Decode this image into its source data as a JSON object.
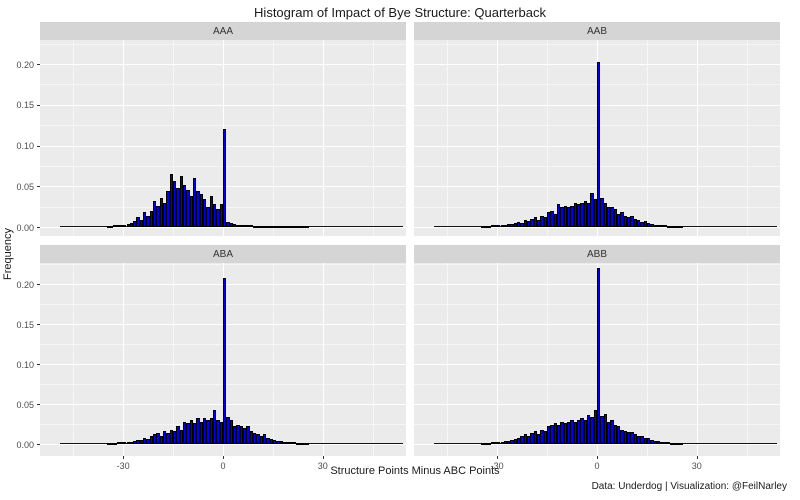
{
  "title": "Histogram of Impact of Bye Structure: Quarterback",
  "caption": "Data: Underdog | Visualization: @FeilNarley",
  "axes": {
    "x_label": "Structure Points Minus ABC Points",
    "y_label": "Frequency",
    "x_ticks": [
      -30,
      0,
      30
    ],
    "x_tick_labels": [
      "-30",
      "0",
      "30"
    ],
    "y_ticks": [
      0.0,
      0.05,
      0.1,
      0.15,
      0.2
    ],
    "y_tick_labels": [
      "0.00",
      "0.05",
      "0.10",
      "0.15",
      "0.20"
    ],
    "x_minor_ticks": [
      -45,
      -15,
      15,
      45
    ],
    "y_minor_ticks": [
      0.025,
      0.075,
      0.125,
      0.175,
      0.225
    ]
  },
  "colors": {
    "bar_fill": "#0000ee",
    "bar_stroke": "#000000",
    "panel_bg": "#ebebeb",
    "strip_bg": "#d5d5d5",
    "grid_major": "#ffffff",
    "grid_minor": "#f5f5f5",
    "tick_text": "#4d4d4d",
    "text": "#1a1a1a"
  },
  "chart_data": [
    {
      "type": "bar",
      "facet": "AAA",
      "title": "Histogram of Impact of Bye Structure: Quarterback",
      "xlabel": "Structure Points Minus ABC Points",
      "ylabel": "Frequency",
      "xlim": [
        -55,
        55
      ],
      "ylim": [
        0,
        0.228
      ],
      "grid": true,
      "legend": "none",
      "bin_start": -35,
      "bin_width": 1,
      "spike": {
        "x": 0,
        "value": 0.12
      },
      "tail_range": [
        -49,
        54
      ],
      "values": [
        0.001,
        0.001,
        0.002,
        0.002,
        0.002,
        0.003,
        0.004,
        0.005,
        0.007,
        0.012,
        0.009,
        0.018,
        0.014,
        0.02,
        0.032,
        0.026,
        0.036,
        0.03,
        0.044,
        0.065,
        0.056,
        0.048,
        0.062,
        0.052,
        0.045,
        0.038,
        0.06,
        0.044,
        0.04,
        0.034,
        0.025,
        0.038,
        0.028,
        0.022,
        0.028,
        0.12,
        0.006,
        0.005,
        0.004,
        0.003,
        0.003,
        0.002,
        0.002,
        0.002,
        0.001,
        0.001,
        0.001,
        0.001,
        0.001,
        0.001,
        0.001,
        0.001,
        0.001,
        0.001,
        0.001,
        0.001,
        0.001,
        0.001,
        0.001,
        0.001,
        0.001
      ]
    },
    {
      "type": "bar",
      "facet": "AAB",
      "title": "Histogram of Impact of Bye Structure: Quarterback",
      "xlabel": "Structure Points Minus ABC Points",
      "ylabel": "Frequency",
      "xlim": [
        -55,
        55
      ],
      "ylim": [
        0,
        0.228
      ],
      "grid": true,
      "legend": "none",
      "bin_start": -35,
      "bin_width": 1,
      "spike": {
        "x": 0,
        "value": 0.202
      },
      "tail_range": [
        -49,
        54
      ],
      "values": [
        0.001,
        0.001,
        0.001,
        0.002,
        0.002,
        0.002,
        0.003,
        0.003,
        0.004,
        0.004,
        0.005,
        0.006,
        0.005,
        0.008,
        0.007,
        0.01,
        0.012,
        0.009,
        0.014,
        0.012,
        0.018,
        0.02,
        0.016,
        0.028,
        0.024,
        0.026,
        0.024,
        0.026,
        0.03,
        0.028,
        0.03,
        0.032,
        0.03,
        0.042,
        0.034,
        0.202,
        0.036,
        0.03,
        0.024,
        0.025,
        0.022,
        0.016,
        0.018,
        0.014,
        0.012,
        0.014,
        0.01,
        0.008,
        0.006,
        0.007,
        0.005,
        0.004,
        0.003,
        0.002,
        0.002,
        0.002,
        0.001,
        0.001,
        0.001,
        0.001,
        0.001
      ]
    },
    {
      "type": "bar",
      "facet": "ABA",
      "title": "Histogram of Impact of Bye Structure: Quarterback",
      "xlabel": "Structure Points Minus ABC Points",
      "ylabel": "Frequency",
      "xlim": [
        -55,
        55
      ],
      "ylim": [
        0,
        0.228
      ],
      "grid": true,
      "legend": "none",
      "bin_start": -35,
      "bin_width": 1,
      "spike": {
        "x": 0,
        "value": 0.208
      },
      "tail_range": [
        -49,
        54
      ],
      "values": [
        0.001,
        0.001,
        0.001,
        0.002,
        0.002,
        0.002,
        0.003,
        0.003,
        0.004,
        0.005,
        0.005,
        0.007,
        0.006,
        0.01,
        0.012,
        0.014,
        0.01,
        0.016,
        0.014,
        0.018,
        0.016,
        0.022,
        0.018,
        0.028,
        0.026,
        0.03,
        0.026,
        0.032,
        0.028,
        0.033,
        0.03,
        0.032,
        0.043,
        0.03,
        0.028,
        0.208,
        0.034,
        0.03,
        0.022,
        0.024,
        0.022,
        0.02,
        0.022,
        0.016,
        0.014,
        0.012,
        0.01,
        0.012,
        0.008,
        0.006,
        0.005,
        0.004,
        0.004,
        0.003,
        0.002,
        0.002,
        0.002,
        0.001,
        0.001,
        0.001,
        0.001
      ]
    },
    {
      "type": "bar",
      "facet": "ABB",
      "title": "Histogram of Impact of Bye Structure: Quarterback",
      "xlabel": "Structure Points Minus ABC Points",
      "ylabel": "Frequency",
      "xlim": [
        -55,
        55
      ],
      "ylim": [
        0,
        0.228
      ],
      "grid": true,
      "legend": "none",
      "bin_start": -35,
      "bin_width": 1,
      "spike": {
        "x": 0,
        "value": 0.22
      },
      "tail_range": [
        -49,
        54
      ],
      "values": [
        0.001,
        0.001,
        0.001,
        0.002,
        0.002,
        0.003,
        0.003,
        0.004,
        0.004,
        0.005,
        0.006,
        0.008,
        0.01,
        0.012,
        0.01,
        0.014,
        0.016,
        0.013,
        0.018,
        0.016,
        0.022,
        0.024,
        0.026,
        0.024,
        0.028,
        0.026,
        0.028,
        0.03,
        0.028,
        0.03,
        0.032,
        0.03,
        0.036,
        0.034,
        0.042,
        0.22,
        0.035,
        0.038,
        0.028,
        0.03,
        0.024,
        0.022,
        0.018,
        0.016,
        0.015,
        0.015,
        0.012,
        0.01,
        0.01,
        0.008,
        0.008,
        0.005,
        0.004,
        0.004,
        0.003,
        0.003,
        0.002,
        0.001,
        0.001,
        0.001,
        0.001
      ]
    }
  ]
}
